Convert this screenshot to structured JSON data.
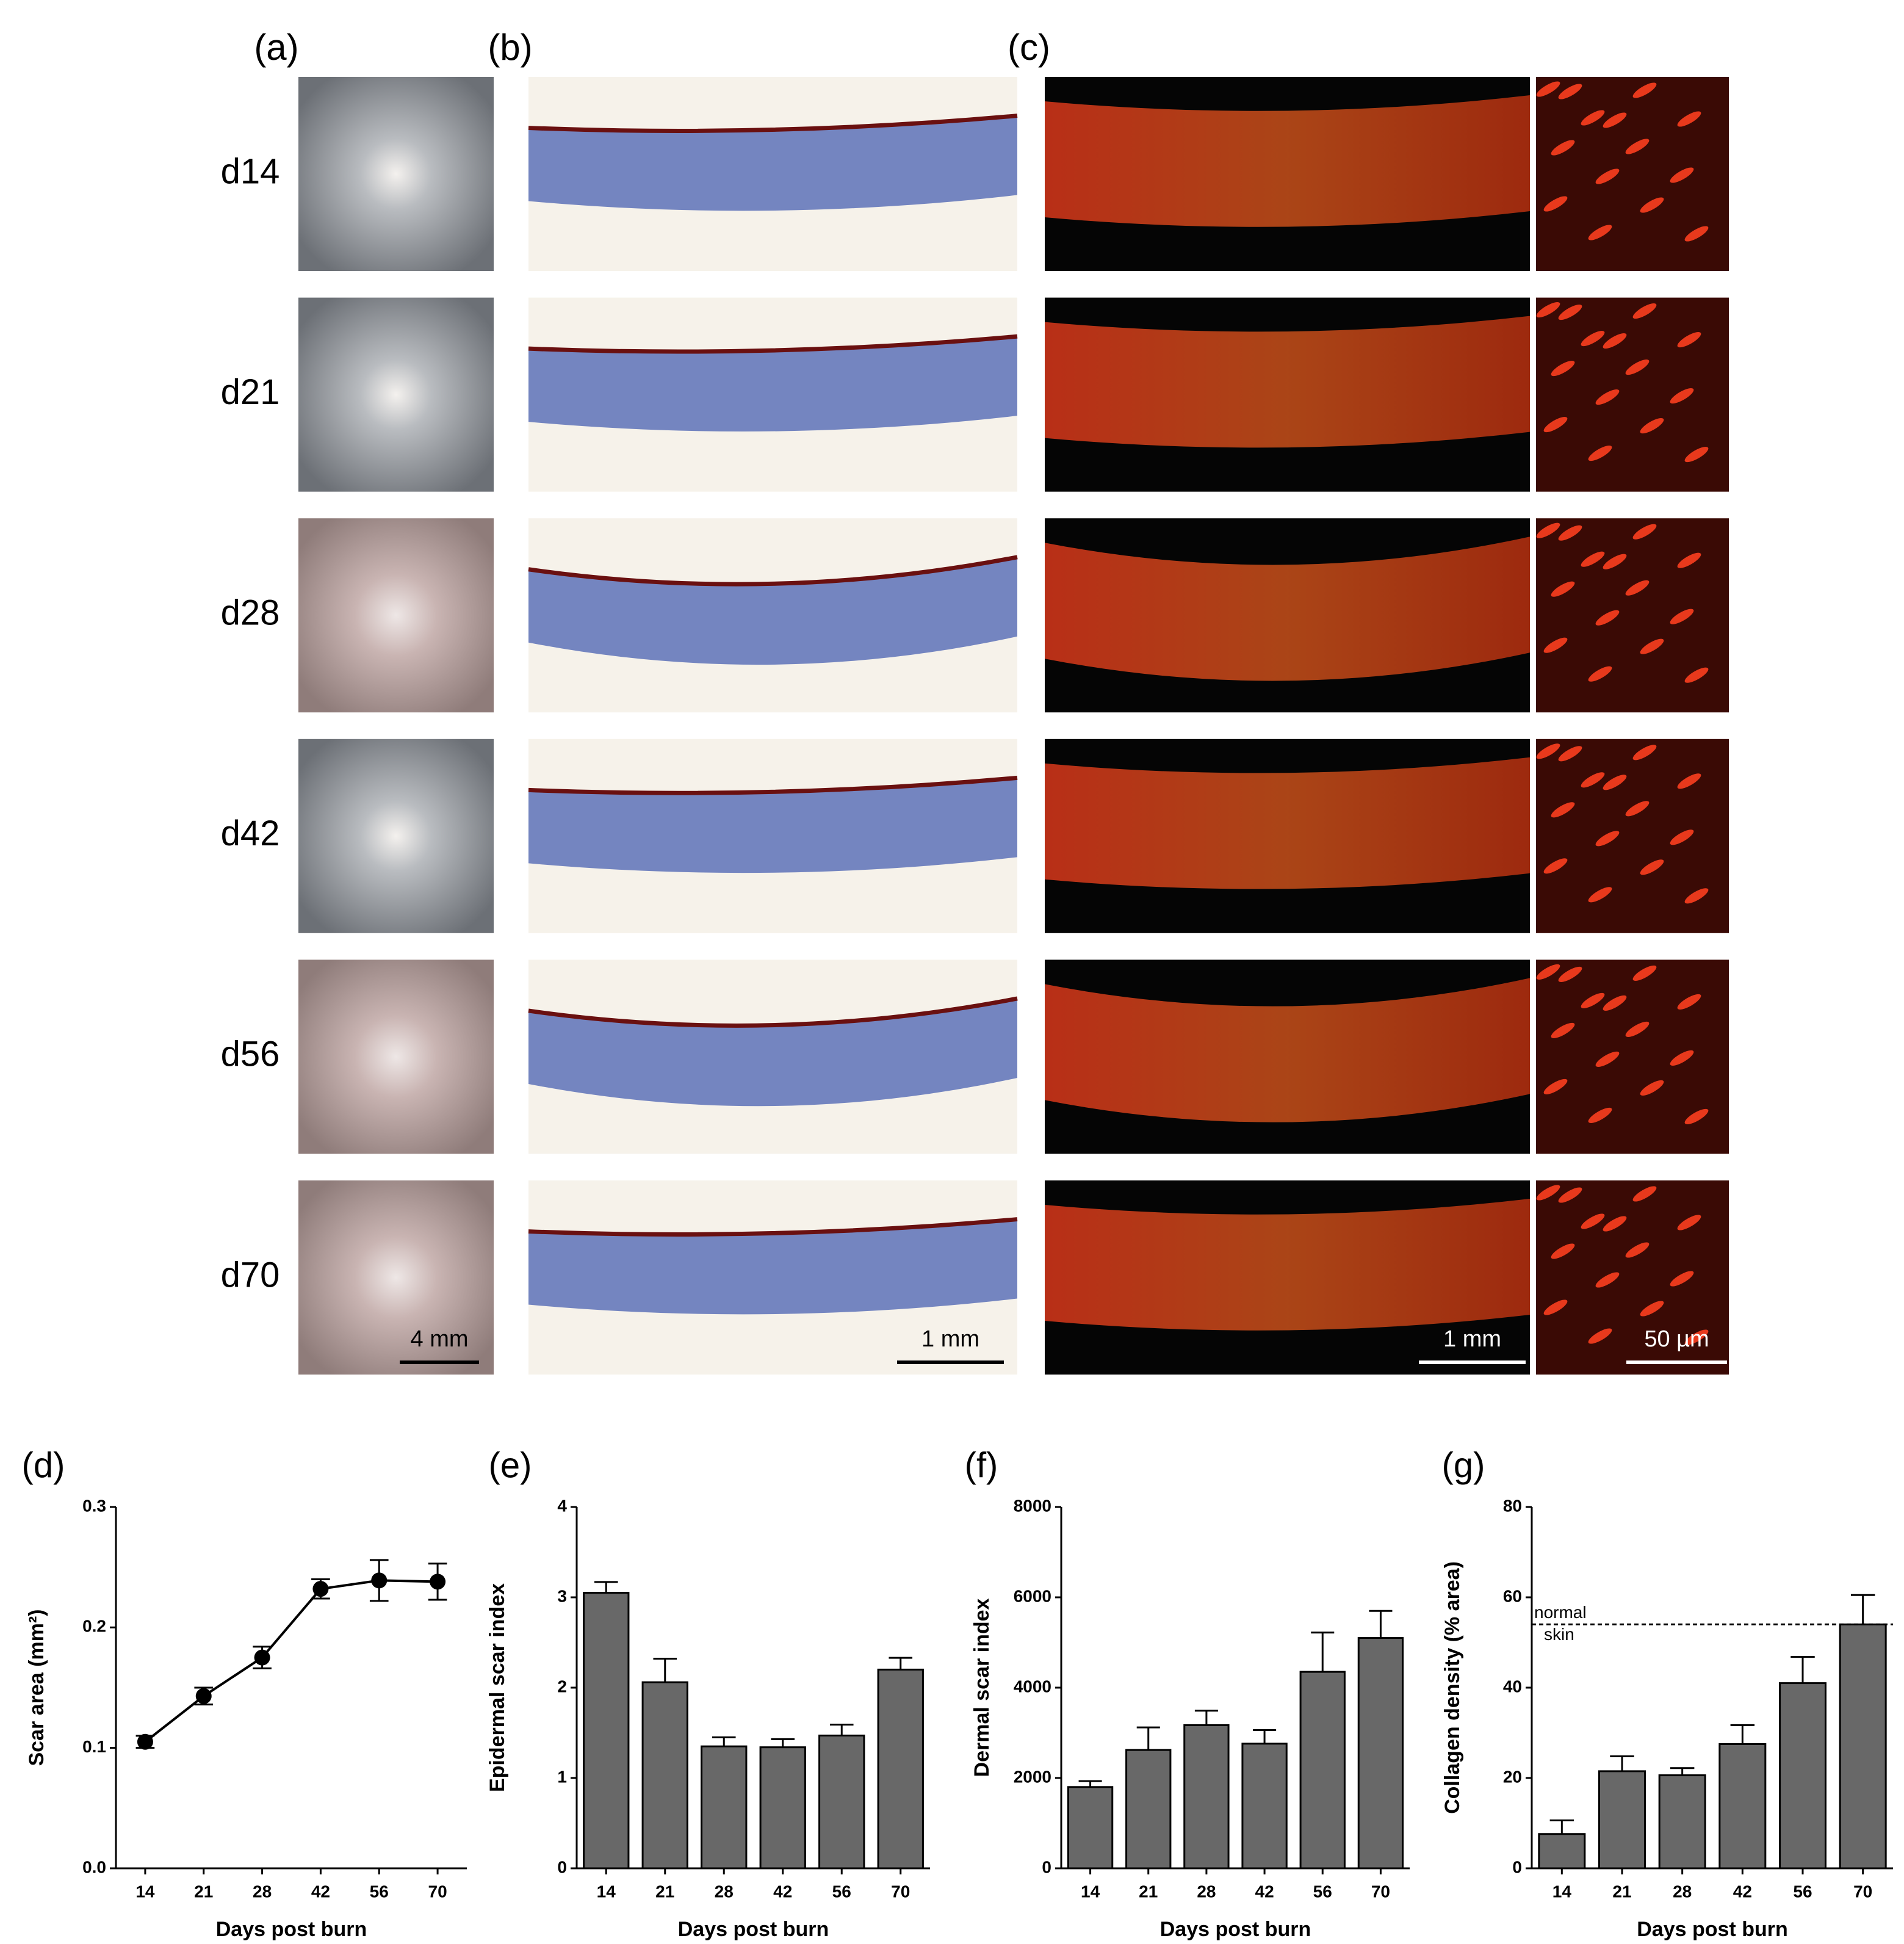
{
  "panels": {
    "labels": [
      "(a)",
      "(b)",
      "(c)"
    ],
    "rows": [
      "d14",
      "d21",
      "d28",
      "d42",
      "d56",
      "d70"
    ],
    "scale_bars": [
      "4 mm",
      "1 mm",
      "1 mm",
      "50 µm"
    ]
  },
  "chart_data": [
    {
      "type": "line",
      "panel": "(d)",
      "xlabel": "Days post burn",
      "ylabel": "Scar area (mm²)",
      "categories": [
        "14",
        "21",
        "28",
        "42",
        "56",
        "70"
      ],
      "values": [
        0.105,
        0.143,
        0.175,
        0.232,
        0.239,
        0.238
      ],
      "errors": [
        0.005,
        0.007,
        0.009,
        0.008,
        0.017,
        0.015
      ],
      "color": "#000000",
      "ylim": [
        0,
        0.3
      ],
      "yticks": [
        {
          "value": 0,
          "label": "0.0"
        },
        0.1,
        0.2,
        0.3
      ]
    },
    {
      "type": "bar",
      "panel": "(e)",
      "xlabel": "Days post burn",
      "ylabel": "Epidermal scar index",
      "categories": [
        "14",
        "21",
        "28",
        "42",
        "56",
        "70"
      ],
      "values": [
        3.05,
        2.06,
        1.35,
        1.34,
        1.47,
        2.2
      ],
      "errors": [
        0.12,
        0.26,
        0.1,
        0.09,
        0.12,
        0.13
      ],
      "color": "#686868",
      "ylim": [
        0,
        4
      ],
      "yticks": [
        0,
        1,
        2,
        3,
        4
      ]
    },
    {
      "type": "bar",
      "panel": "(f)",
      "xlabel": "Days post burn",
      "ylabel": "Dermal scar index",
      "categories": [
        "14",
        "21",
        "28",
        "42",
        "56",
        "70"
      ],
      "values": [
        1800,
        2620,
        3170,
        2760,
        4350,
        5100
      ],
      "errors": [
        130,
        500,
        320,
        300,
        870,
        600
      ],
      "color": "#686868",
      "ylim": [
        0,
        8000
      ],
      "yticks": [
        0,
        2000,
        4000,
        6000,
        8000
      ]
    },
    {
      "type": "bar",
      "panel": "(g)",
      "xlabel": "Days post burn",
      "ylabel": "Collagen density (% area)",
      "categories": [
        "14",
        "21",
        "28",
        "42",
        "56",
        "70"
      ],
      "values": [
        7.6,
        21.5,
        20.6,
        27.5,
        41,
        54
      ],
      "errors": [
        3,
        3.3,
        1.6,
        4.2,
        5.8,
        6.5
      ],
      "color": "#686868",
      "ylim": [
        0,
        80
      ],
      "yticks": [
        0,
        20,
        40,
        60,
        80
      ],
      "reference": {
        "value": 54,
        "labels": [
          "normal",
          "skin"
        ]
      }
    }
  ]
}
